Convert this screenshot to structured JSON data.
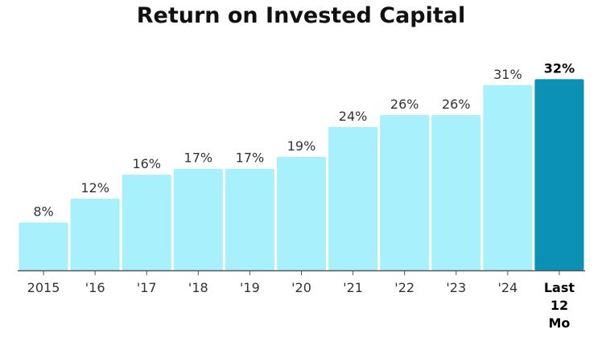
{
  "chart_data": {
    "type": "bar",
    "title": "Return on Invested Capital",
    "categories": [
      "2015",
      "'16",
      "'17",
      "'18",
      "'19",
      "'20",
      "'21",
      "'22",
      "'23",
      "'24",
      "Last 12 Mo"
    ],
    "category_lines": [
      [
        "2015"
      ],
      [
        "'16"
      ],
      [
        "'17"
      ],
      [
        "'18"
      ],
      [
        "'19"
      ],
      [
        "'20"
      ],
      [
        "'21"
      ],
      [
        "'22"
      ],
      [
        "'23"
      ],
      [
        "'24"
      ],
      [
        "Last",
        "12",
        "Mo"
      ]
    ],
    "values": [
      8,
      12,
      16,
      17,
      17,
      19,
      24,
      26,
      26,
      31,
      32
    ],
    "labels": [
      "8%",
      "12%",
      "16%",
      "17%",
      "17%",
      "19%",
      "24%",
      "26%",
      "26%",
      "31%",
      "32%"
    ],
    "highlight_index": 10,
    "ylim": [
      0,
      34.2
    ],
    "grid": false,
    "xlabel": "",
    "ylabel": ""
  },
  "colors": {
    "bar": "#a8f0fb",
    "bar_highlight": "#0a91b3",
    "axis": "#555555"
  }
}
